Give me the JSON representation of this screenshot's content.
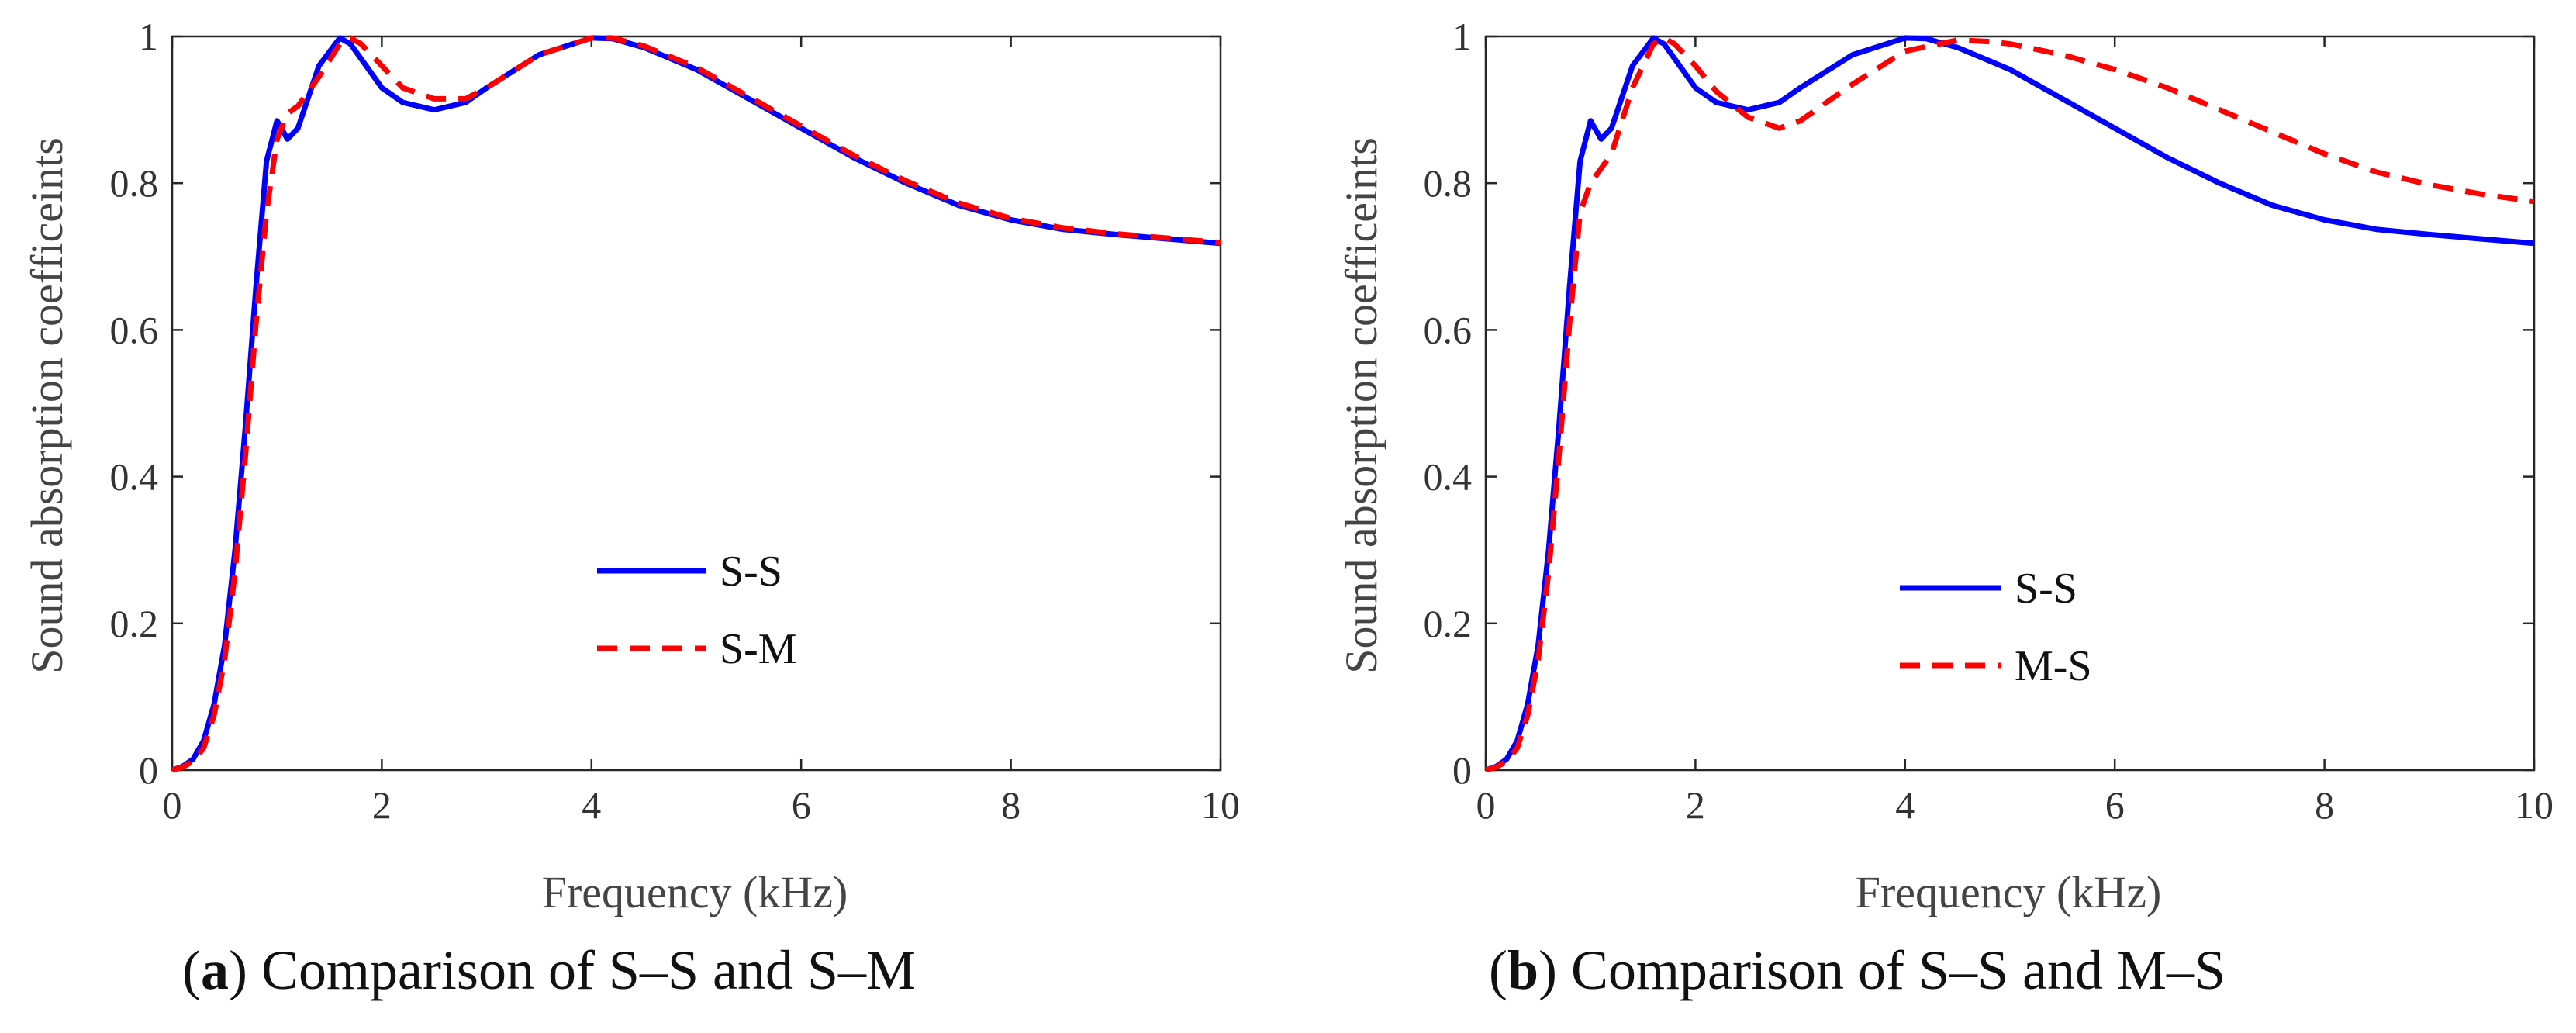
{
  "figure": {
    "panels": [
      {
        "caption_letter": "a",
        "caption_text": "Comparison of S–S and S–M",
        "paren_open": "(",
        "paren_close": ")"
      },
      {
        "caption_letter": "b",
        "caption_text": "Comparison of S–S and M–S",
        "paren_open": "(",
        "paren_close": ")"
      }
    ]
  },
  "chart_data": [
    {
      "type": "line",
      "title": "",
      "xlabel": "Frequency (kHz)",
      "ylabel": "Sound absorption coefficeints",
      "xlim": [
        0,
        10
      ],
      "ylim": [
        0,
        1
      ],
      "xticks": [
        0,
        2,
        4,
        6,
        8,
        10
      ],
      "yticks": [
        0,
        0.2,
        0.4,
        0.6,
        0.8,
        1
      ],
      "xtick_labels": [
        "0",
        "2",
        "4",
        "6",
        "8",
        "10"
      ],
      "ytick_labels": [
        "0",
        "0.2",
        "0.4",
        "0.6",
        "0.8",
        "1"
      ],
      "grid": false,
      "legend_position": "center",
      "series": [
        {
          "name": "S-S",
          "color": "#0000ff",
          "style": "solid",
          "x": [
            0,
            0.1,
            0.2,
            0.3,
            0.4,
            0.5,
            0.6,
            0.7,
            0.8,
            0.9,
            1.0,
            1.1,
            1.2,
            1.4,
            1.6,
            1.7,
            1.8,
            2.0,
            2.2,
            2.5,
            2.8,
            3.0,
            3.5,
            4.0,
            4.2,
            4.5,
            5.0,
            5.5,
            6.0,
            6.5,
            7.0,
            7.5,
            8.0,
            8.5,
            9.0,
            9.5,
            10.0
          ],
          "y": [
            0.0,
            0.005,
            0.015,
            0.04,
            0.09,
            0.17,
            0.3,
            0.47,
            0.66,
            0.83,
            0.885,
            0.86,
            0.875,
            0.96,
            0.998,
            0.99,
            0.97,
            0.93,
            0.91,
            0.9,
            0.91,
            0.93,
            0.975,
            0.998,
            0.997,
            0.985,
            0.955,
            0.915,
            0.875,
            0.835,
            0.8,
            0.77,
            0.75,
            0.737,
            0.73,
            0.724,
            0.718
          ]
        },
        {
          "name": "S-M",
          "color": "#ff0000",
          "style": "dashed",
          "x": [
            0,
            0.1,
            0.2,
            0.3,
            0.4,
            0.5,
            0.6,
            0.7,
            0.8,
            0.9,
            1.0,
            1.1,
            1.2,
            1.4,
            1.6,
            1.7,
            1.8,
            2.0,
            2.2,
            2.5,
            2.8,
            3.0,
            3.5,
            4.0,
            4.2,
            4.5,
            5.0,
            5.5,
            6.0,
            6.5,
            7.0,
            7.5,
            8.0,
            8.5,
            9.0,
            9.5,
            10.0
          ],
          "y": [
            0.0,
            0.004,
            0.012,
            0.03,
            0.075,
            0.15,
            0.27,
            0.43,
            0.61,
            0.76,
            0.86,
            0.895,
            0.905,
            0.945,
            0.99,
            0.998,
            0.99,
            0.96,
            0.93,
            0.915,
            0.915,
            0.93,
            0.975,
            0.998,
            0.998,
            0.987,
            0.958,
            0.918,
            0.878,
            0.838,
            0.803,
            0.773,
            0.752,
            0.739,
            0.731,
            0.725,
            0.719
          ]
        }
      ]
    },
    {
      "type": "line",
      "title": "",
      "xlabel": "Frequency (kHz)",
      "ylabel": "Sound absorption coefficeints",
      "xlim": [
        0,
        10
      ],
      "ylim": [
        0,
        1
      ],
      "xticks": [
        0,
        2,
        4,
        6,
        8,
        10
      ],
      "yticks": [
        0,
        0.2,
        0.4,
        0.6,
        0.8,
        1
      ],
      "xtick_labels": [
        "0",
        "2",
        "4",
        "6",
        "8",
        "10"
      ],
      "ytick_labels": [
        "0",
        "0.2",
        "0.4",
        "0.6",
        "0.8",
        "1"
      ],
      "grid": false,
      "legend_position": "center",
      "series": [
        {
          "name": "S-S",
          "color": "#0000ff",
          "style": "solid",
          "x": [
            0,
            0.1,
            0.2,
            0.3,
            0.4,
            0.5,
            0.6,
            0.7,
            0.8,
            0.9,
            1.0,
            1.1,
            1.2,
            1.4,
            1.6,
            1.7,
            1.8,
            2.0,
            2.2,
            2.5,
            2.8,
            3.0,
            3.5,
            4.0,
            4.2,
            4.5,
            5.0,
            5.5,
            6.0,
            6.5,
            7.0,
            7.5,
            8.0,
            8.5,
            9.0,
            9.5,
            10.0
          ],
          "y": [
            0.0,
            0.005,
            0.015,
            0.04,
            0.09,
            0.17,
            0.3,
            0.47,
            0.66,
            0.83,
            0.885,
            0.86,
            0.875,
            0.96,
            0.998,
            0.99,
            0.97,
            0.93,
            0.91,
            0.9,
            0.91,
            0.93,
            0.975,
            0.998,
            0.997,
            0.985,
            0.955,
            0.915,
            0.875,
            0.835,
            0.8,
            0.77,
            0.75,
            0.737,
            0.73,
            0.724,
            0.718
          ]
        },
        {
          "name": "M-S",
          "color": "#ff0000",
          "style": "dashed",
          "x": [
            0,
            0.1,
            0.2,
            0.3,
            0.4,
            0.5,
            0.6,
            0.7,
            0.8,
            0.9,
            1.0,
            1.2,
            1.4,
            1.6,
            1.7,
            1.8,
            2.0,
            2.2,
            2.5,
            2.8,
            3.0,
            3.5,
            4.0,
            4.5,
            4.8,
            5.0,
            5.5,
            6.0,
            6.5,
            7.0,
            7.5,
            8.0,
            8.5,
            9.0,
            9.5,
            10.0
          ],
          "y": [
            0.0,
            0.004,
            0.012,
            0.03,
            0.075,
            0.15,
            0.27,
            0.43,
            0.61,
            0.76,
            0.8,
            0.84,
            0.93,
            0.99,
            0.998,
            0.99,
            0.96,
            0.925,
            0.89,
            0.875,
            0.885,
            0.935,
            0.98,
            0.995,
            0.993,
            0.99,
            0.975,
            0.955,
            0.93,
            0.9,
            0.87,
            0.84,
            0.815,
            0.798,
            0.785,
            0.775
          ]
        }
      ]
    }
  ]
}
